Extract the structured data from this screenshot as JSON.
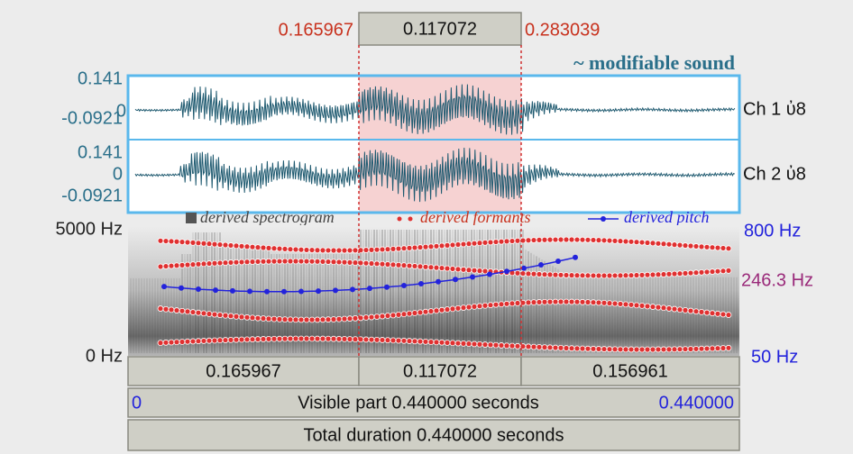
{
  "selection": {
    "start": "0.165967",
    "duration": "0.117072",
    "end": "0.283039"
  },
  "editor_title": "~ modifiable sound",
  "waveform": {
    "channels": [
      {
        "label": "Ch 1 ὐ8",
        "max": "0.141",
        "zero": "0",
        "min": "-0.0921"
      },
      {
        "label": "Ch 2 ὐ8",
        "max": "0.141",
        "zero": "0",
        "min": "-0.0921"
      }
    ]
  },
  "spectrogram": {
    "legend": [
      "derived spectrogram",
      "derived formants",
      "derived pitch"
    ],
    "freq_max": "5000 Hz",
    "freq_min": "0 Hz",
    "pitch_max": "800 Hz",
    "pitch_cursor": "246.3 Hz",
    "pitch_min": "50 Hz"
  },
  "bottom": {
    "segments": [
      "0.165967",
      "0.117072",
      "0.156961"
    ],
    "visible": {
      "start": "0",
      "label": "Visible part 0.440000 seconds",
      "end": "0.440000"
    },
    "total": "Total duration 0.440000 seconds"
  }
}
